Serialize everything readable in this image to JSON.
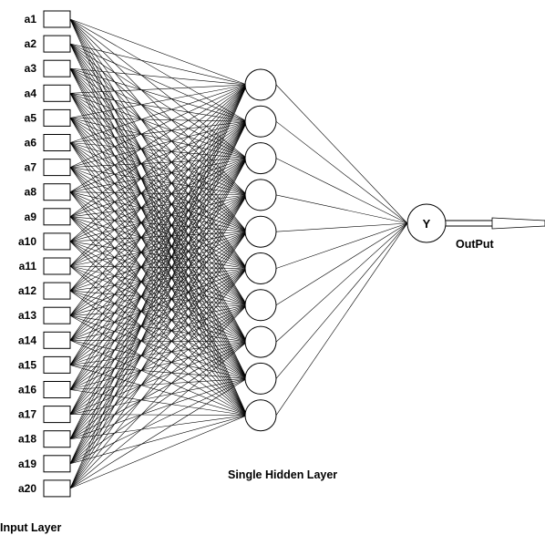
{
  "input_layer": {
    "caption": "Input Layer",
    "nodes": [
      "a1",
      "a2",
      "a3",
      "a4",
      "a5",
      "a6",
      "a7",
      "a8",
      "a9",
      "a10",
      "a11",
      "a12",
      "a13",
      "a14",
      "a15",
      "a16",
      "a17",
      "a18",
      "a19",
      "a20"
    ]
  },
  "hidden_layer": {
    "caption": "Single Hidden Layer",
    "node_count": 10
  },
  "output_layer": {
    "node_label": "Y",
    "caption": "OutPut"
  },
  "colors": {
    "line": "#000000",
    "background": "#ffffff"
  }
}
